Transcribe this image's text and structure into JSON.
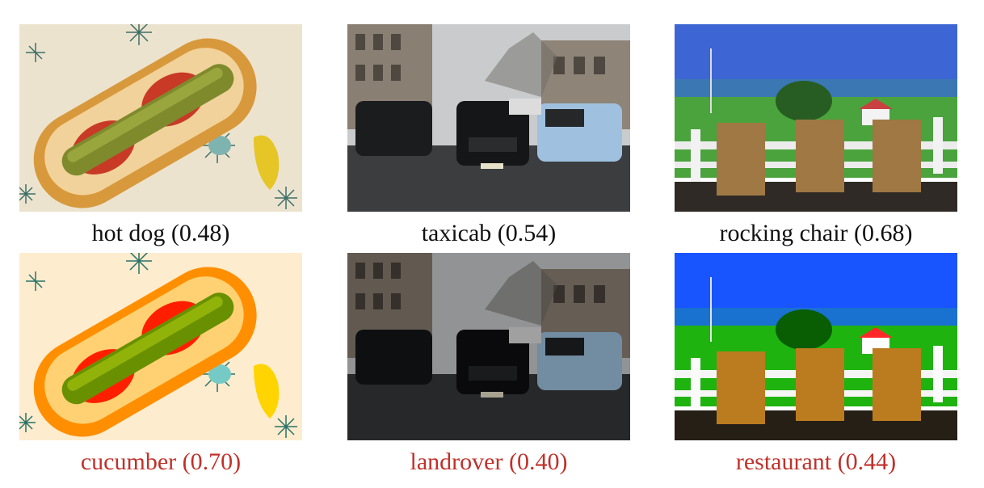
{
  "rows": [
    {
      "kind": "original",
      "caption_color": "#111111",
      "items": [
        {
          "caption": "hot dog (0.48)",
          "label": "hot dog",
          "score": 0.48
        },
        {
          "caption": "taxicab (0.54)",
          "label": "taxicab",
          "score": 0.54
        },
        {
          "caption": "rocking chair (0.68)",
          "label": "rocking chair",
          "score": 0.68
        }
      ]
    },
    {
      "kind": "perturbed",
      "caption_color": "#c0312b",
      "items": [
        {
          "caption": "cucumber (0.70)",
          "label": "cucumber",
          "score": 0.7
        },
        {
          "caption": "landrover (0.40)",
          "label": "landrover",
          "score": 0.4
        },
        {
          "caption": "restaurant (0.44)",
          "label": "restaurant",
          "score": 0.44
        }
      ]
    }
  ]
}
